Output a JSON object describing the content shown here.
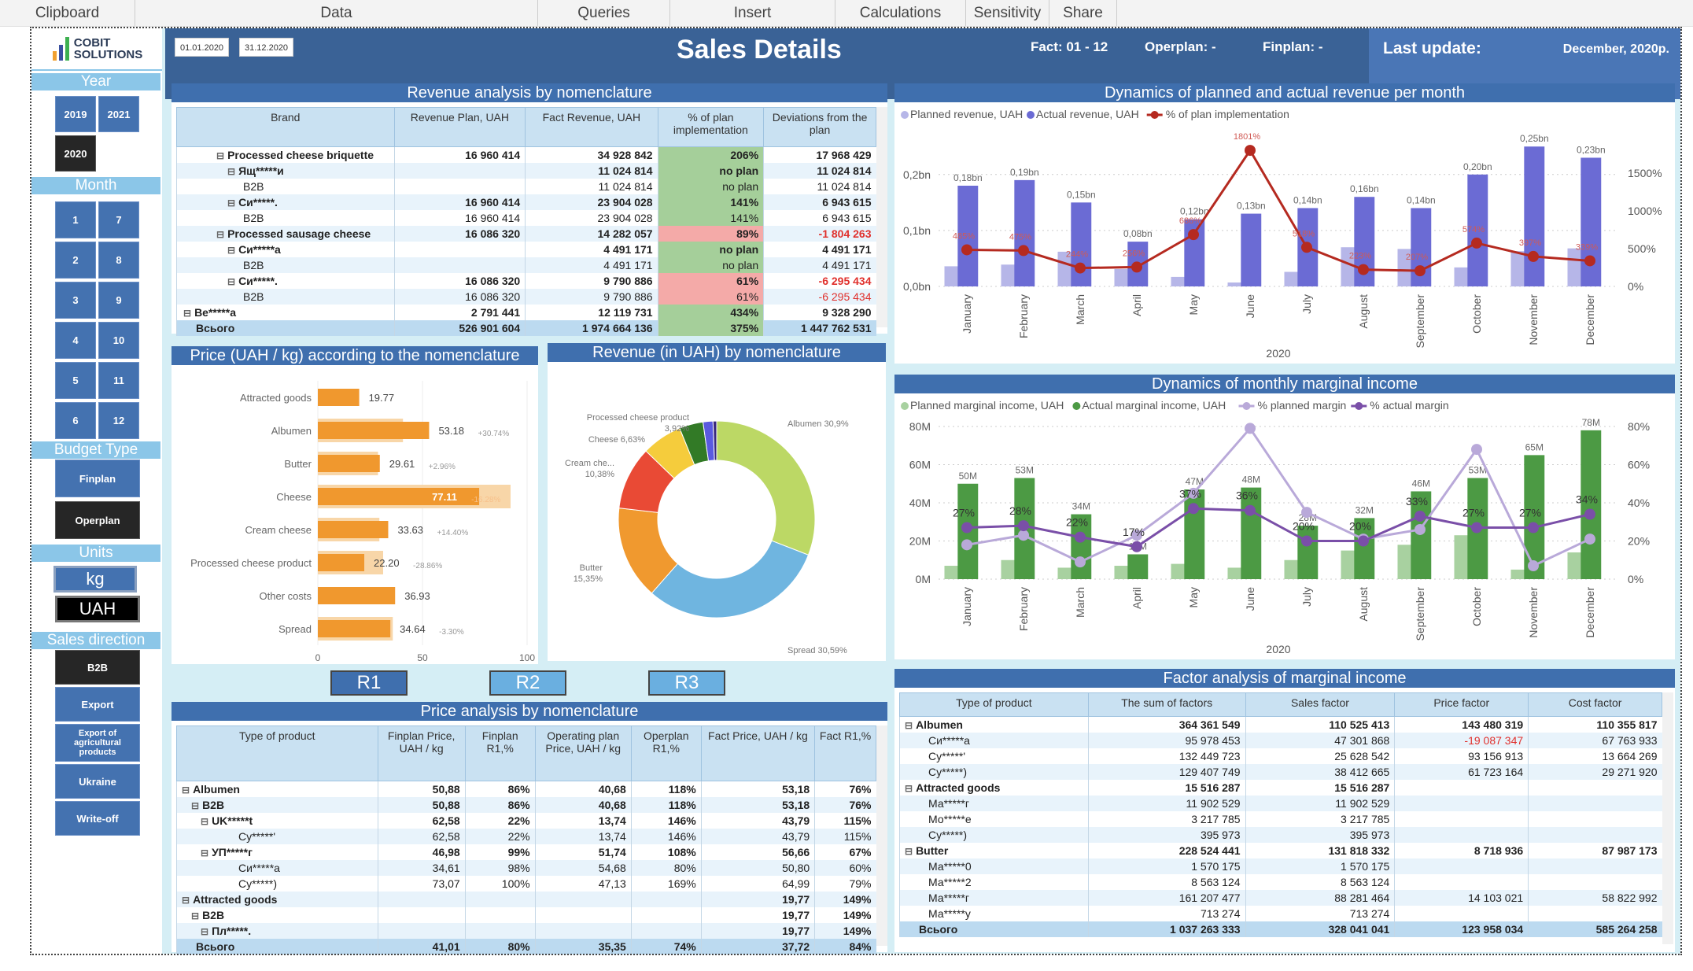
{
  "ribbon": [
    "Clipboard",
    "Data",
    "Queries",
    "Insert",
    "Calculations",
    "Sensitivity",
    "Share"
  ],
  "logo": {
    "line1": "COBIT",
    "line2": "SOLUTIONS"
  },
  "header": {
    "date_from": "01.01.2020",
    "date_to": "31.12.2020",
    "title": "Sales Details",
    "fact": "Fact: 01 - 12",
    "operplan": "Operplan: -",
    "finplan": "Finplan: -",
    "last_update_label": "Last update:",
    "last_update_value": "December, 2020p."
  },
  "sidebar": {
    "year_label": "Year",
    "years": [
      "2019",
      "2021",
      "2020"
    ],
    "year_selected": "2020",
    "month_label": "Month",
    "months": [
      "1",
      "7",
      "2",
      "8",
      "3",
      "9",
      "4",
      "10",
      "5",
      "11",
      "6",
      "12"
    ],
    "budget_label": "Budget Type",
    "budget": [
      "Finplan",
      "Operplan"
    ],
    "budget_selected": "Operplan",
    "units_label": "Units",
    "units": [
      "kg",
      "UAH"
    ],
    "units_selected": "UAH",
    "sales_label": "Sales direction",
    "sales": [
      "B2B",
      "Export",
      "Export of agricultural products",
      "Ukraine",
      "Write-off"
    ],
    "sales_selected": "B2B"
  },
  "revenue_table": {
    "title": "Revenue analysis by nomenclature",
    "headers": [
      "Brand",
      "Revenue Plan, UAH",
      "Fact Revenue, UAH",
      "% of plan implementation",
      "Deviations from the plan"
    ],
    "rows": [
      {
        "name": "Processed cheese briquette",
        "plan": "16 960 414",
        "fact": "34 928 842",
        "pct": "206%",
        "dev": "17 968 429",
        "bold": true,
        "status": "pos",
        "level": 1
      },
      {
        "name": "Ящ*****и",
        "plan": "",
        "fact": "11 024 814",
        "pct": "no plan",
        "dev": "11 024 814",
        "bold": true,
        "status": "pos",
        "level": 2
      },
      {
        "name": "B2B",
        "plan": "",
        "fact": "11 024 814",
        "pct": "no plan",
        "dev": "11 024 814",
        "bold": false,
        "status": "pos",
        "level": 3
      },
      {
        "name": "Си*****.",
        "plan": "16 960 414",
        "fact": "23 904 028",
        "pct": "141%",
        "dev": "6 943 615",
        "bold": true,
        "status": "pos",
        "level": 2
      },
      {
        "name": "B2B",
        "plan": "16 960 414",
        "fact": "23 904 028",
        "pct": "141%",
        "dev": "6 943 615",
        "bold": false,
        "status": "pos",
        "level": 3
      },
      {
        "name": "Processed sausage cheese",
        "plan": "16 086 320",
        "fact": "14 282 057",
        "pct": "89%",
        "dev": "-1 804 263",
        "bold": true,
        "status": "neg",
        "level": 1
      },
      {
        "name": "Си*****а",
        "plan": "",
        "fact": "4 491 171",
        "pct": "no plan",
        "dev": "4 491 171",
        "bold": true,
        "status": "pos",
        "level": 2
      },
      {
        "name": "B2B",
        "plan": "",
        "fact": "4 491 171",
        "pct": "no plan",
        "dev": "4 491 171",
        "bold": false,
        "status": "pos",
        "level": 3
      },
      {
        "name": "Си*****.",
        "plan": "16 086 320",
        "fact": "9 790 886",
        "pct": "61%",
        "dev": "-6 295 434",
        "bold": true,
        "status": "neg",
        "level": 2
      },
      {
        "name": "B2B",
        "plan": "16 086 320",
        "fact": "9 790 886",
        "pct": "61%",
        "dev": "-6 295 434",
        "bold": false,
        "status": "neg",
        "level": 3
      },
      {
        "name": "Ве*****а",
        "plan": "2 791 441",
        "fact": "12 119 731",
        "pct": "434%",
        "dev": "9 328 290",
        "bold": true,
        "status": "pos",
        "level": 0
      }
    ],
    "total": {
      "name": "Всього",
      "plan": "526 901 604",
      "fact": "1 974 664 136",
      "pct": "375%",
      "dev": "1 447 762 531"
    }
  },
  "price_chart": {
    "title": "Price (UAH / kg) according to the nomenclature"
  },
  "donut_chart": {
    "title": "Revenue (in UAH) by nomenclature"
  },
  "r_buttons": [
    "R1",
    "R2",
    "R3"
  ],
  "price_table": {
    "title": "Price analysis by nomenclature",
    "headers": [
      "Type of product",
      "Finplan Price, UAH / kg",
      "Finplan R1,%",
      "Operating plan Price, UAH / kg",
      "Operplan R1,%",
      "Fact Price, UAH / kg",
      "Fact R1,%"
    ],
    "rows": [
      {
        "c": [
          "Albumen",
          "50,88",
          "86%",
          "40,68",
          "118%",
          "53,18",
          "76%"
        ],
        "bold": true,
        "level": 0
      },
      {
        "c": [
          "B2B",
          "50,88",
          "86%",
          "40,68",
          "118%",
          "53,18",
          "76%"
        ],
        "bold": true,
        "level": 1
      },
      {
        "c": [
          "UK*****t",
          "62,58",
          "22%",
          "13,74",
          "146%",
          "43,79",
          "115%"
        ],
        "bold": true,
        "level": 2
      },
      {
        "c": [
          "Су*****'",
          "62,58",
          "22%",
          "13,74",
          "146%",
          "43,79",
          "115%"
        ],
        "bold": false,
        "level": 3
      },
      {
        "c": [
          "УП*****г",
          "46,98",
          "99%",
          "51,74",
          "108%",
          "56,66",
          "67%"
        ],
        "bold": true,
        "level": 2
      },
      {
        "c": [
          "Си*****а",
          "34,61",
          "98%",
          "54,68",
          "80%",
          "50,80",
          "60%"
        ],
        "bold": false,
        "level": 3
      },
      {
        "c": [
          "Су*****)",
          "73,07",
          "100%",
          "47,13",
          "169%",
          "64,99",
          "79%"
        ],
        "bold": false,
        "level": 3
      },
      {
        "c": [
          "Attracted goods",
          "",
          "",
          "",
          "",
          "19,77",
          "149%"
        ],
        "bold": true,
        "level": 0
      },
      {
        "c": [
          "B2B",
          "",
          "",
          "",
          "",
          "19,77",
          "149%"
        ],
        "bold": true,
        "level": 1
      },
      {
        "c": [
          "Пл*****.",
          "",
          "",
          "",
          "",
          "19,77",
          "149%"
        ],
        "bold": true,
        "level": 2
      }
    ],
    "total": [
      "Всього",
      "41,01",
      "80%",
      "35,35",
      "74%",
      "37,72",
      "84%"
    ]
  },
  "factor_table": {
    "title": "Factor analysis of marginal income",
    "headers": [
      "Type of product",
      "The sum of factors",
      "Sales factor",
      "Price factor",
      "Cost factor"
    ],
    "rows": [
      {
        "c": [
          "Albumen",
          "364 361 549",
          "110 525 413",
          "143 480 319",
          "110 355 817"
        ],
        "bold": true
      },
      {
        "c": [
          "Си*****а",
          "95 978 453",
          "47 301 868",
          "-19 087 347",
          "67 763 933"
        ],
        "bold": false,
        "red": 3
      },
      {
        "c": [
          "Су*****'",
          "132 449 723",
          "25 628 542",
          "93 156 913",
          "13 664 269"
        ],
        "bold": false
      },
      {
        "c": [
          "Су*****)",
          "129 407 749",
          "38 412 665",
          "61 723 164",
          "29 271 920"
        ],
        "bold": false
      },
      {
        "c": [
          "Attracted goods",
          "15 516 287",
          "15 516 287",
          "",
          ""
        ],
        "bold": true
      },
      {
        "c": [
          "Ма*****г",
          "11 902 529",
          "11 902 529",
          "",
          ""
        ],
        "bold": false
      },
      {
        "c": [
          "Мо*****е",
          "3 217 785",
          "3 217 785",
          "",
          ""
        ],
        "bold": false
      },
      {
        "c": [
          "Су*****)",
          "395 973",
          "395 973",
          "",
          ""
        ],
        "bold": false
      },
      {
        "c": [
          "Butter",
          "228 524 441",
          "131 818 332",
          "8 718 936",
          "87 987 173"
        ],
        "bold": true
      },
      {
        "c": [
          "Ма*****0",
          "1 570 175",
          "1 570 175",
          "",
          ""
        ],
        "bold": false
      },
      {
        "c": [
          "Ма*****2",
          "8 563 124",
          "8 563 124",
          "",
          ""
        ],
        "bold": false
      },
      {
        "c": [
          "Ма*****г",
          "161 207 477",
          "88 281 464",
          "14 103 021",
          "58 822 992"
        ],
        "bold": false
      },
      {
        "c": [
          "Ма*****у",
          "713 274",
          "713 274",
          "",
          ""
        ],
        "bold": false
      }
    ],
    "total": [
      "Всього",
      "1 037 263 333",
      "328 041 041",
      "123 958 034",
      "585 264 258"
    ]
  },
  "chart_data": [
    {
      "type": "bar",
      "title": "Dynamics of planned and actual revenue per month",
      "categories": [
        "January",
        "February",
        "March",
        "April",
        "May",
        "June",
        "July",
        "August",
        "September",
        "October",
        "November",
        "December"
      ],
      "xlabel": "2020",
      "series": [
        {
          "name": "Planned revenue, UAH",
          "kind": "bar",
          "color": "#b6b6e8",
          "values": [
            0.036,
            0.039,
            0.062,
            0.031,
            0.017,
            0.007,
            0.026,
            0.07,
            0.067,
            0.034,
            0.063,
            0.068
          ]
        },
        {
          "name": "Actual revenue, UAH",
          "kind": "bar",
          "color": "#6b6bd4",
          "values": [
            0.18,
            0.19,
            0.15,
            0.08,
            0.12,
            0.13,
            0.14,
            0.16,
            0.14,
            0.2,
            0.25,
            0.23
          ],
          "labels": [
            "0,18bn",
            "0,19bn",
            "0,15bn",
            "0,08bn",
            "0,12bn",
            "0,13bn",
            "0,14bn",
            "0,16bn",
            "0,14bn",
            "0,20bn",
            "0,25bn",
            "0,23bn"
          ]
        },
        {
          "name": "% of plan implementation",
          "kind": "line",
          "axis": "right",
          "color": "#b52a20",
          "values": [
            485,
            475,
            244,
            256,
            686,
            1801,
            518,
            223,
            207,
            574,
            397,
            339
          ],
          "labels": [
            "485%",
            "475%",
            "244%",
            "256%",
            "686%",
            "1801%",
            "518%",
            "223%",
            "207%",
            "574%",
            "397%",
            "339%"
          ]
        }
      ],
      "yleft": {
        "ticks": [
          "0,0bn",
          "0,1bn",
          "0,2bn"
        ],
        "range": [
          0,
          0.27
        ]
      },
      "yright": {
        "ticks": [
          "0%",
          "500%",
          "1000%",
          "1500%"
        ],
        "range": [
          0,
          2000
        ]
      },
      "legend": "top-left",
      "grid": true
    },
    {
      "type": "bar",
      "title": "Dynamics of monthly marginal income",
      "categories": [
        "January",
        "February",
        "March",
        "April",
        "May",
        "June",
        "July",
        "August",
        "September",
        "October",
        "November",
        "December"
      ],
      "xlabel": "2020",
      "series": [
        {
          "name": "Planned marginal income, UAH",
          "kind": "bar",
          "color": "#a8d1a0",
          "values": [
            7,
            10,
            6,
            7,
            8,
            6,
            10,
            15,
            18,
            23,
            5,
            14
          ]
        },
        {
          "name": "Actual marginal income, UAH",
          "kind": "bar",
          "color": "#4c9a44",
          "values": [
            50,
            53,
            34,
            13,
            47,
            48,
            28,
            32,
            46,
            53,
            65,
            78
          ],
          "labels": [
            "50M",
            "53M",
            "34M",
            "13M",
            "47M",
            "48M",
            "28M",
            "32M",
            "46M",
            "53M",
            "65M",
            "78M"
          ]
        },
        {
          "name": "% planned margin",
          "kind": "line",
          "axis": "right",
          "color": "#b9a9d9",
          "values": [
            18,
            23,
            9,
            23,
            45,
            79,
            35,
            21,
            26,
            68,
            7,
            21
          ]
        },
        {
          "name": "% actual margin",
          "kind": "line",
          "axis": "right",
          "color": "#7a4fa8",
          "values": [
            27,
            28,
            22,
            17,
            37,
            36,
            20,
            20,
            33,
            27,
            27,
            34
          ],
          "labels": [
            "27%",
            "28%",
            "22%",
            "17%",
            "37%",
            "36%",
            "20%",
            "20%",
            "33%",
            "27%",
            "27%",
            "34%"
          ]
        }
      ],
      "yleft": {
        "ticks": [
          "0M",
          "20M",
          "40M",
          "60M",
          "80M"
        ],
        "range": [
          0,
          80
        ]
      },
      "yright": {
        "ticks": [
          "0%",
          "20%",
          "40%",
          "60%",
          "80%"
        ],
        "range": [
          0,
          80
        ]
      },
      "legend": "top-left",
      "grid": true
    },
    {
      "type": "bar",
      "title": "Price (UAH / kg) according to the nomenclature",
      "categories": [
        "Attracted goods",
        "Albumen",
        "Butter",
        "Cheese",
        "Cream cheese",
        "Processed cheese product",
        "Other costs",
        "Spread"
      ],
      "series": [
        {
          "name": "Fact price",
          "values": [
            19.77,
            53.18,
            29.61,
            77.11,
            33.63,
            22.2,
            36.93,
            34.64
          ]
        },
        {
          "name": "Plan price",
          "values": [
            null,
            40.68,
            28.76,
            92.1,
            29.4,
            31.21,
            null,
            35.82
          ]
        }
      ],
      "deviations": [
        "",
        "+30.74%",
        "+2.96%",
        "-16.28%",
        "+14.40%",
        "-28.86%",
        "",
        "-3.30%"
      ],
      "xticks": [
        "0",
        "50",
        "100"
      ],
      "xlim": [
        0,
        100
      ]
    },
    {
      "type": "pie",
      "title": "Revenue (in UAH) by nomenclature",
      "slices": [
        {
          "label": "Albumen",
          "value": 30.9,
          "display": "Albumen 30,9%",
          "color": "#bcd865"
        },
        {
          "label": "Spread",
          "value": 30.59,
          "display": "Spread 30,59%",
          "color": "#6fb5e0"
        },
        {
          "label": "Butter",
          "value": 15.35,
          "display": "Butter 15,35%",
          "color": "#f0992f"
        },
        {
          "label": "Cream cheese",
          "value": 10.38,
          "display": "Cream che... 10,38%",
          "color": "#e94a35"
        },
        {
          "label": "Cheese",
          "value": 6.63,
          "display": "Cheese 6,63%",
          "color": "#f5cc3c"
        },
        {
          "label": "Processed cheese product",
          "value": 3.92,
          "display": "Processed cheese product 3,92%",
          "color": "#327a26"
        },
        {
          "label": "Other",
          "value": 1.63,
          "display": "",
          "color": "#5a5ae0"
        },
        {
          "label": "Other 2",
          "value": 0.6,
          "display": "",
          "color": "#3a2a80"
        }
      ]
    }
  ]
}
